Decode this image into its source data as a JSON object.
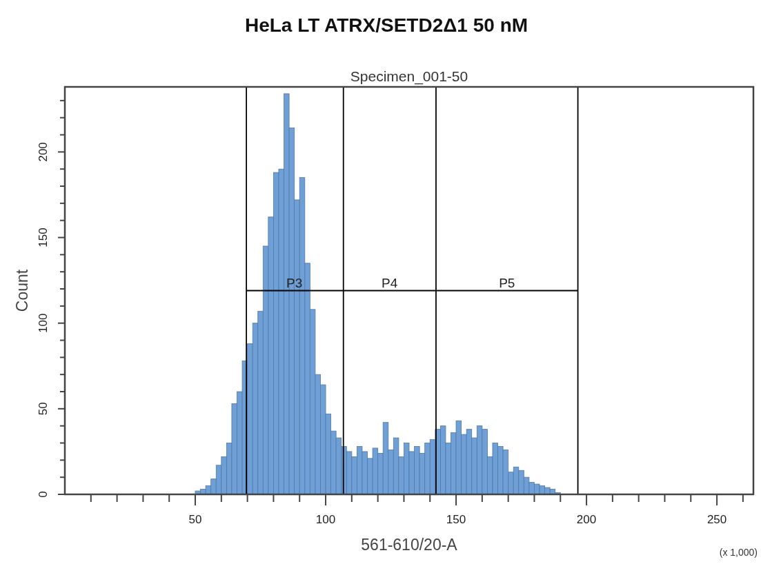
{
  "chart_data": {
    "type": "histogram",
    "title": "HeLa LT ATRX/SETD2Δ1 50 nM",
    "subtitle": "Specimen_001-50",
    "xlabel": "561-610/20-A",
    "ylabel": "Count",
    "annotations": [
      {
        "text": "P3",
        "x": 88,
        "y": 119
      },
      {
        "text": "P4",
        "x": 124.5,
        "y": 119
      },
      {
        "text": "P5",
        "x": 169.5,
        "y": 119
      },
      "(x 1,000)"
    ],
    "bins": [
      50,
      52,
      54,
      56,
      58,
      60,
      62,
      64,
      66,
      68,
      70,
      72,
      74,
      76,
      78,
      80,
      82,
      84,
      86,
      88,
      90,
      92,
      94,
      96,
      98,
      100,
      102,
      104,
      106,
      108,
      110,
      112,
      114,
      116,
      118,
      120,
      122,
      124,
      126,
      128,
      130,
      132,
      134,
      136,
      138,
      140,
      142,
      144,
      146,
      148,
      150,
      152,
      154,
      156,
      158,
      160,
      162,
      164,
      166,
      168,
      170,
      172,
      174,
      176,
      178,
      180,
      182,
      184,
      186,
      188,
      190
    ],
    "values": [
      2,
      3,
      5,
      9,
      17,
      22,
      30,
      53,
      60,
      78,
      88,
      100,
      107,
      145,
      162,
      188,
      190,
      234,
      214,
      172,
      185,
      135,
      108,
      70,
      64,
      47,
      37,
      33,
      28,
      25,
      22,
      28,
      25,
      21,
      27,
      24,
      42,
      26,
      33,
      22,
      30,
      25,
      28,
      24,
      30,
      32,
      38,
      40,
      30,
      36,
      43,
      35,
      38,
      33,
      40,
      38,
      22,
      30,
      28,
      26,
      13,
      16,
      14,
      10,
      7,
      6,
      5,
      4,
      3,
      1
    ],
    "color": "#6e9fd6",
    "xlim": [
      0,
      264
    ],
    "xticks": [
      {
        "value": 10,
        "label": null
      },
      {
        "value": 20,
        "label": null
      },
      {
        "value": 30,
        "label": null
      },
      {
        "value": 40,
        "label": null
      },
      50,
      {
        "value": 60,
        "label": null
      },
      {
        "value": 70,
        "label": null
      },
      {
        "value": 80,
        "label": null
      },
      {
        "value": 90,
        "label": null
      },
      100,
      {
        "value": 110,
        "label": null
      },
      {
        "value": 120,
        "label": null
      },
      {
        "value": 130,
        "label": null
      },
      {
        "value": 140,
        "label": null
      },
      150,
      {
        "value": 160,
        "label": null
      },
      {
        "value": 170,
        "label": null
      },
      {
        "value": 180,
        "label": null
      },
      {
        "value": 190,
        "label": null
      },
      200,
      {
        "value": 210,
        "label": null
      },
      {
        "value": 220,
        "label": null
      },
      {
        "value": 230,
        "label": null
      },
      {
        "value": 240,
        "label": null
      },
      250,
      {
        "value": 260,
        "label": null
      }
    ],
    "ylim": [
      0,
      238
    ],
    "yticks": [
      0,
      {
        "value": 10,
        "label": null
      },
      {
        "value": 20,
        "label": null
      },
      {
        "value": 30,
        "label": null
      },
      {
        "value": 40,
        "label": null
      },
      50,
      {
        "value": 60,
        "label": null
      },
      {
        "value": 70,
        "label": null
      },
      {
        "value": 80,
        "label": null
      },
      {
        "value": 90,
        "label": null
      },
      100,
      {
        "value": 110,
        "label": null
      },
      {
        "value": 120,
        "label": null
      },
      {
        "value": 130,
        "label": null
      },
      {
        "value": 140,
        "label": null
      },
      150,
      {
        "value": 160,
        "label": null
      },
      {
        "value": 170,
        "label": null
      },
      {
        "value": 180,
        "label": null
      },
      {
        "value": 190,
        "label": null
      },
      200,
      {
        "value": 210,
        "label": null
      },
      {
        "value": 220,
        "label": null
      },
      {
        "value": 230,
        "label": null
      }
    ],
    "ref_lines": [
      {
        "axis": "x",
        "value": 69.6,
        "color": "#000000"
      },
      {
        "axis": "x",
        "value": 106.8,
        "color": "#000000"
      },
      {
        "axis": "x",
        "value": 142.3,
        "color": "#000000"
      },
      {
        "axis": "x",
        "value": 196.7,
        "color": "#000000"
      }
    ],
    "series": [
      {
        "type": "line",
        "x": [
          69.6,
          196.7
        ],
        "values": [
          119,
          119
        ],
        "color": "#000000"
      }
    ]
  }
}
